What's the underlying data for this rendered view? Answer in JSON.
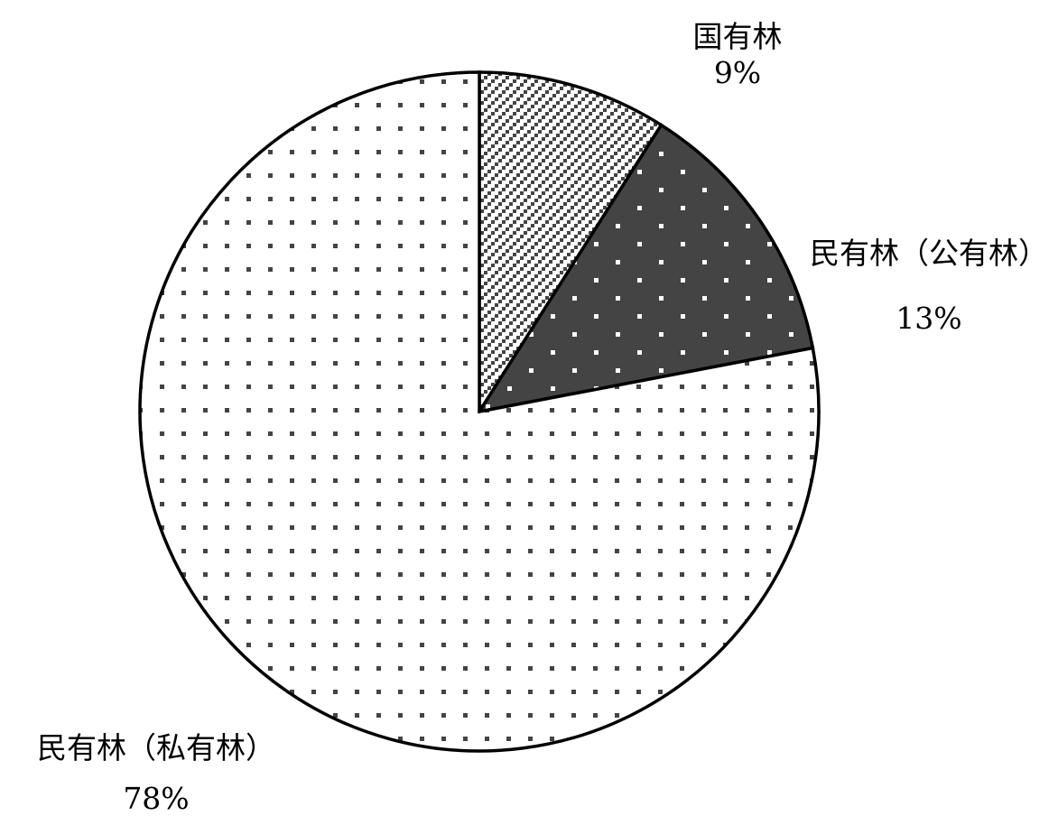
{
  "chart_data": {
    "type": "pie",
    "start_angle": "12 o'clock",
    "direction": "clockwise",
    "slices": [
      {
        "name": "国有林",
        "value": 9,
        "value_label": "9%",
        "pattern": "diagonal-hatch",
        "fill_color": "#ffffff",
        "pattern_color": "#444444"
      },
      {
        "name": "民有林（公有林）",
        "value": 13,
        "value_label": "13%",
        "pattern": "dots-light-on-dark",
        "fill_color": "#444444",
        "pattern_color": "#ffffff"
      },
      {
        "name": "民有林（私有林）",
        "value": 78,
        "value_label": "78%",
        "pattern": "dots-dark-on-light",
        "fill_color": "#ffffff",
        "pattern_color": "#444444"
      }
    ],
    "colors": {
      "outline": "#000000",
      "background": "#ffffff"
    }
  }
}
